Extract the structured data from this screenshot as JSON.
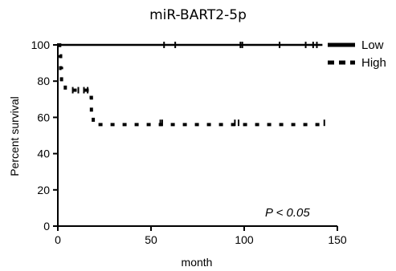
{
  "chart_data": {
    "type": "line",
    "title": "miR-BART2-5p",
    "xlabel": "month",
    "ylabel": "Percent survival",
    "xlim": [
      0,
      150
    ],
    "ylim": [
      0,
      100
    ],
    "x_ticks": [
      "0",
      "50",
      "100",
      "150"
    ],
    "y_ticks": [
      "0",
      "20",
      "40",
      "60",
      "80",
      "100"
    ],
    "grid": false,
    "legend_position": "top-right",
    "annotation": "P < 0.05",
    "series": [
      {
        "name": "Low",
        "style": "solid",
        "steps": [
          [
            0,
            100
          ],
          [
            142,
            100
          ]
        ],
        "censor_marks": [
          [
            57,
            100
          ],
          [
            63,
            100
          ],
          [
            98,
            100
          ],
          [
            99,
            100
          ],
          [
            119,
            100
          ],
          [
            133,
            100
          ],
          [
            137,
            100
          ],
          [
            139,
            100
          ]
        ]
      },
      {
        "name": "High",
        "style": "dashed",
        "steps": [
          [
            0,
            100
          ],
          [
            1,
            100
          ],
          [
            1,
            94
          ],
          [
            1.5,
            94
          ],
          [
            1.5,
            87
          ],
          [
            2,
            87
          ],
          [
            2,
            78
          ],
          [
            4,
            78
          ],
          [
            4,
            75
          ],
          [
            17,
            75
          ],
          [
            17,
            71
          ],
          [
            18,
            71
          ],
          [
            18,
            63
          ],
          [
            19,
            63
          ],
          [
            19,
            56
          ],
          [
            144,
            56
          ]
        ],
        "censor_marks": [
          [
            8,
            75
          ],
          [
            11,
            75
          ],
          [
            14,
            75
          ],
          [
            16,
            75
          ],
          [
            55,
            57
          ],
          [
            56,
            57
          ],
          [
            95,
            57
          ],
          [
            97,
            57
          ],
          [
            143,
            57
          ]
        ]
      }
    ]
  }
}
